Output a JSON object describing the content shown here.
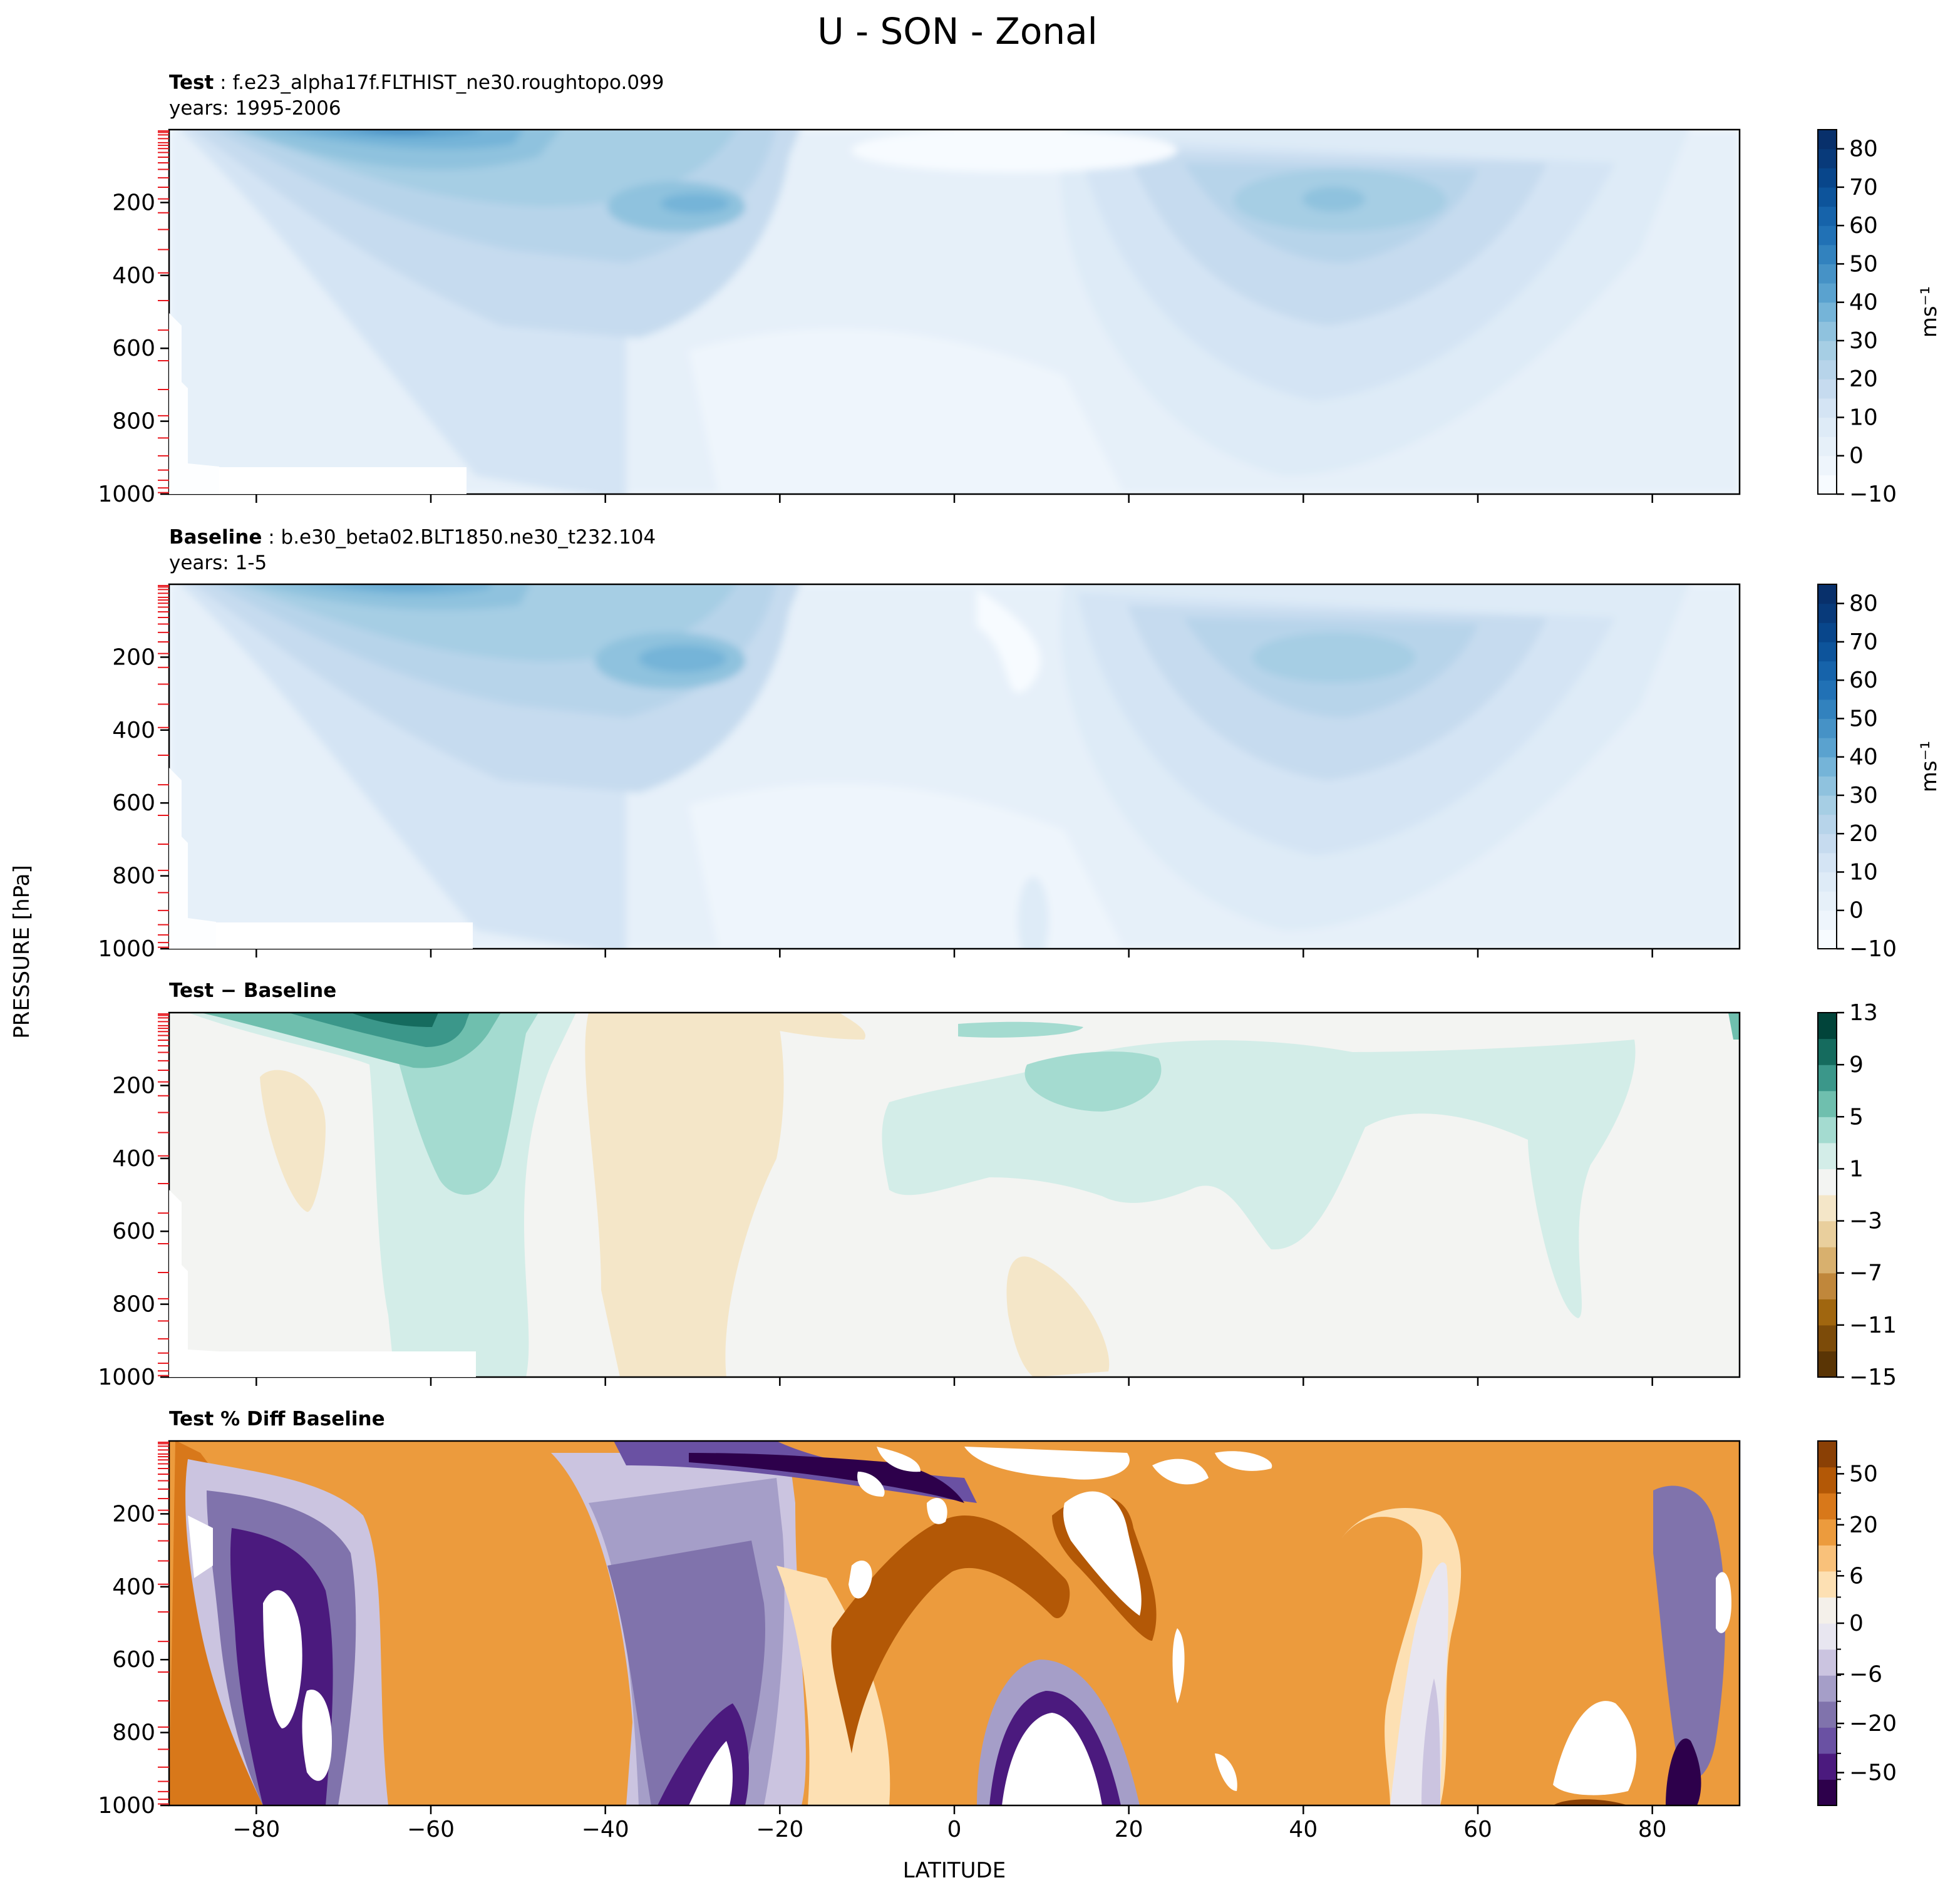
{
  "figure": {
    "title": "U - SON - Zonal",
    "ylabel": "PRESSURE [hPa]",
    "xlabel": "LATITUDE"
  },
  "chart_data": [
    {
      "type": "heatmap",
      "panel": "test",
      "title_bold": "Test",
      "title_rest": " : f.e23_alpha17f.FLTHIST_ne30.roughtopo.099",
      "subtitle": "years: 1995-2006",
      "x": [
        -90,
        90
      ],
      "xlim": [
        -90,
        90
      ],
      "ylim": [
        1000,
        0
      ],
      "xticks": [
        -80,
        -60,
        -40,
        -20,
        0,
        20,
        40,
        60,
        80
      ],
      "yticks": [
        200,
        400,
        600,
        800,
        1000
      ],
      "colorbar": {
        "label": "ms⁻¹",
        "ticks": [
          "80",
          "70",
          "60",
          "50",
          "40",
          "30",
          "20",
          "10",
          "0",
          "−10"
        ],
        "levels": [
          -10,
          -5,
          0,
          5,
          10,
          15,
          20,
          25,
          30,
          35,
          40,
          45,
          50,
          55,
          60,
          65,
          70,
          75,
          80,
          85
        ],
        "colors": [
          "#f7fbff",
          "#eef5fc",
          "#e6f0f9",
          "#deebf7",
          "#d4e4f4",
          "#c6dbef",
          "#b7d4ea",
          "#a6cee4",
          "#8fc2de",
          "#75b4d8",
          "#5aa2cf",
          "#4692c6",
          "#3282be",
          "#2171b5",
          "#1663aa",
          "#0d549b",
          "#08468b",
          "#083a7a",
          "#08306b"
        ]
      },
      "jets": [
        {
          "lat": -62,
          "p": 20,
          "u": 52
        },
        {
          "lat": -30,
          "p": 200,
          "u": 40
        },
        {
          "lat": 44,
          "p": 200,
          "u": 33
        }
      ]
    },
    {
      "type": "heatmap",
      "panel": "baseline",
      "title_bold": "Baseline",
      "title_rest": " : b.e30_beta02.BLT1850.ne30_t232.104",
      "subtitle": "years: 1-5",
      "x": [
        -90,
        90
      ],
      "xlim": [
        -90,
        90
      ],
      "ylim": [
        1000,
        0
      ],
      "xticks": [
        -80,
        -60,
        -40,
        -20,
        0,
        20,
        40,
        60,
        80
      ],
      "yticks": [
        200,
        400,
        600,
        800,
        1000
      ],
      "colorbar": {
        "label": "ms⁻¹",
        "ticks": [
          "80",
          "70",
          "60",
          "50",
          "40",
          "30",
          "20",
          "10",
          "0",
          "−10"
        ],
        "levels": [
          -10,
          -5,
          0,
          5,
          10,
          15,
          20,
          25,
          30,
          35,
          40,
          45,
          50,
          55,
          60,
          65,
          70,
          75,
          80,
          85
        ],
        "colors": [
          "#f7fbff",
          "#eef5fc",
          "#e6f0f9",
          "#deebf7",
          "#d4e4f4",
          "#c6dbef",
          "#b7d4ea",
          "#a6cee4",
          "#8fc2de",
          "#75b4d8",
          "#5aa2cf",
          "#4692c6",
          "#3282be",
          "#2171b5",
          "#1663aa",
          "#0d549b",
          "#08468b",
          "#083a7a",
          "#08306b"
        ]
      },
      "jets": [
        {
          "lat": -62,
          "p": 20,
          "u": 48
        },
        {
          "lat": -30,
          "p": 200,
          "u": 42
        },
        {
          "lat": 42,
          "p": 200,
          "u": 31
        }
      ]
    },
    {
      "type": "heatmap",
      "panel": "diff",
      "title_bold": "Test − Baseline",
      "title_rest": "",
      "subtitle": "",
      "xlim": [
        -90,
        90
      ],
      "ylim": [
        1000,
        0
      ],
      "xticks": [
        -80,
        -60,
        -40,
        -20,
        0,
        20,
        40,
        60,
        80
      ],
      "yticks": [
        200,
        400,
        600,
        800,
        1000
      ],
      "colorbar": {
        "label": "",
        "ticks": [
          "13",
          "9",
          "5",
          "1",
          "−3",
          "−7",
          "−11",
          "−15"
        ],
        "levels": [
          -15,
          -13,
          -11,
          -9,
          -7,
          -5,
          -3,
          -1,
          1,
          3,
          5,
          7,
          9,
          11,
          13
        ],
        "colors": [
          "#5a3505",
          "#7c4b09",
          "#a0660f",
          "#c0873b",
          "#d8b06e",
          "#e9cf9d",
          "#f4e6c8",
          "#f3f4f2",
          "#d3ede8",
          "#a4dbd0",
          "#6fbfae",
          "#3b978a",
          "#156b5e",
          "#01443a"
        ]
      }
    },
    {
      "type": "heatmap",
      "panel": "pctdiff",
      "title_bold": "Test % Diff Baseline",
      "title_rest": "",
      "subtitle": "",
      "xlim": [
        -90,
        90
      ],
      "ylim": [
        1000,
        0
      ],
      "xticks": [
        -80,
        -60,
        -40,
        -20,
        0,
        20,
        40,
        60,
        80
      ],
      "yticks": [
        200,
        400,
        600,
        800,
        1000
      ],
      "colorbar": {
        "label": "",
        "ticks": [
          "50",
          "20",
          "6",
          "0",
          "−6",
          "−20",
          "−50"
        ],
        "colors": [
          "#2d004b",
          "#4b1a7e",
          "#6a51a3",
          "#8073ac",
          "#a59ec8",
          "#cbc4e0",
          "#e8e6f0",
          "#f4f0ea",
          "#fde0b3",
          "#f9c17a",
          "#ec9b3d",
          "#d8781a",
          "#b35806",
          "#8a4005"
        ]
      }
    }
  ]
}
